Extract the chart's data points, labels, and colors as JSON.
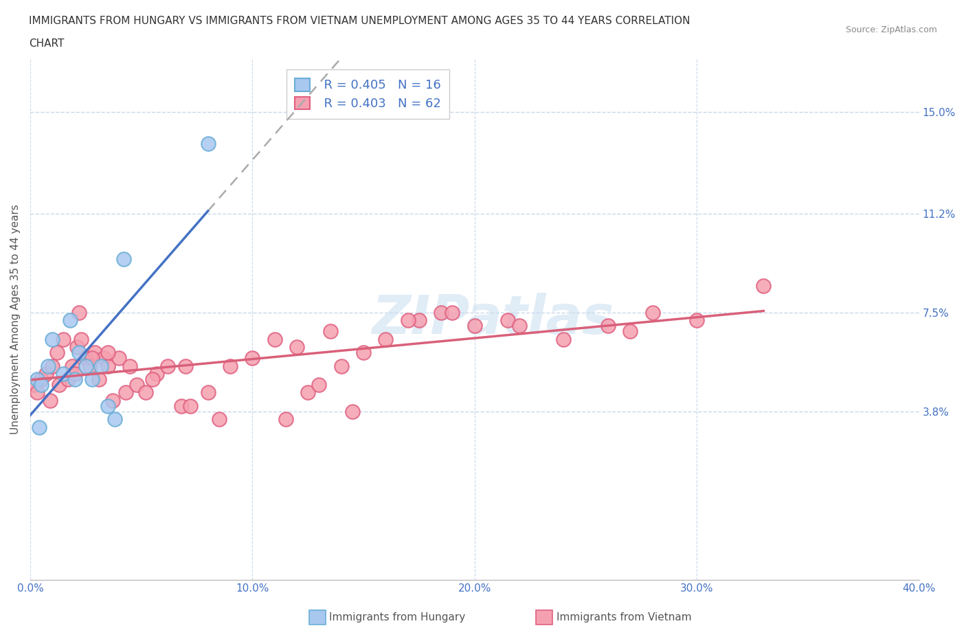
{
  "title_line1": "IMMIGRANTS FROM HUNGARY VS IMMIGRANTS FROM VIETNAM UNEMPLOYMENT AMONG AGES 35 TO 44 YEARS CORRELATION",
  "title_line2": "CHART",
  "source_text": "Source: ZipAtlas.com",
  "ylabel": "Unemployment Among Ages 35 to 44 years",
  "xlim": [
    0,
    40
  ],
  "ylim": [
    -2.5,
    17
  ],
  "yticks": [
    3.8,
    7.5,
    11.2,
    15.0
  ],
  "xticks": [
    0,
    10,
    20,
    30,
    40
  ],
  "xtick_labels": [
    "0.0%",
    "10.0%",
    "20.0%",
    "30.0%",
    "40.0%"
  ],
  "ytick_labels": [
    "3.8%",
    "7.5%",
    "11.2%",
    "15.0%"
  ],
  "hungary_color": "#a8c8f0",
  "hungary_edge": "#6aaed6",
  "vietnam_color": "#f5a0b0",
  "vietnam_edge": "#e06080",
  "hungary_line_color": "#4472c4",
  "vietnam_line_color": "#d9607a",
  "dash_line_color": "#aaaaaa",
  "legend_r_hungary": "R = 0.405",
  "legend_n_hungary": "N = 16",
  "legend_r_vietnam": "R = 0.403",
  "legend_n_vietnam": "N = 62",
  "hungary_x": [
    0.3,
    0.5,
    0.8,
    1.0,
    1.5,
    1.8,
    2.0,
    2.2,
    2.5,
    2.8,
    3.2,
    3.5,
    3.8,
    4.2,
    8.0,
    0.4
  ],
  "hungary_y": [
    5.0,
    4.8,
    5.5,
    6.5,
    5.2,
    7.2,
    5.0,
    6.0,
    5.5,
    5.0,
    5.5,
    4.0,
    3.5,
    9.5,
    13.8,
    3.2
  ],
  "vietnam_x": [
    0.2,
    0.3,
    0.5,
    0.7,
    0.9,
    1.0,
    1.2,
    1.3,
    1.5,
    1.7,
    1.9,
    2.0,
    2.1,
    2.3,
    2.5,
    2.7,
    2.9,
    3.1,
    3.3,
    3.5,
    3.7,
    4.0,
    4.3,
    4.8,
    5.2,
    5.7,
    6.2,
    6.8,
    7.2,
    8.0,
    9.0,
    10.0,
    11.0,
    12.0,
    12.5,
    13.5,
    14.0,
    15.0,
    16.0,
    17.5,
    18.5,
    20.0,
    21.5,
    24.0,
    26.0,
    28.0,
    30.0,
    33.0,
    2.2,
    2.8,
    3.5,
    4.5,
    5.5,
    7.0,
    8.5,
    11.5,
    13.0,
    14.5,
    17.0,
    19.0,
    22.0,
    27.0
  ],
  "vietnam_y": [
    4.8,
    4.5,
    5.0,
    5.2,
    4.2,
    5.5,
    6.0,
    4.8,
    6.5,
    5.0,
    5.5,
    5.2,
    6.2,
    6.5,
    5.8,
    5.5,
    6.0,
    5.0,
    5.8,
    5.5,
    4.2,
    5.8,
    4.5,
    4.8,
    4.5,
    5.2,
    5.5,
    4.0,
    4.0,
    4.5,
    5.5,
    5.8,
    6.5,
    6.2,
    4.5,
    6.8,
    5.5,
    6.0,
    6.5,
    7.2,
    7.5,
    7.0,
    7.2,
    6.5,
    7.0,
    7.5,
    7.2,
    8.5,
    7.5,
    5.8,
    6.0,
    5.5,
    5.0,
    5.5,
    3.5,
    3.5,
    4.8,
    3.8,
    7.2,
    7.5,
    7.0,
    6.8
  ],
  "background_color": "#ffffff",
  "grid_color": "#c8d8e8",
  "watermark_text": "ZIPatlas",
  "watermark_color": "#c8ddf0",
  "watermark_alpha": 0.55,
  "hungary_line_x_start": 0.0,
  "hungary_line_x_solid_end": 8.0,
  "hungary_line_x_dash_end": 16.0
}
